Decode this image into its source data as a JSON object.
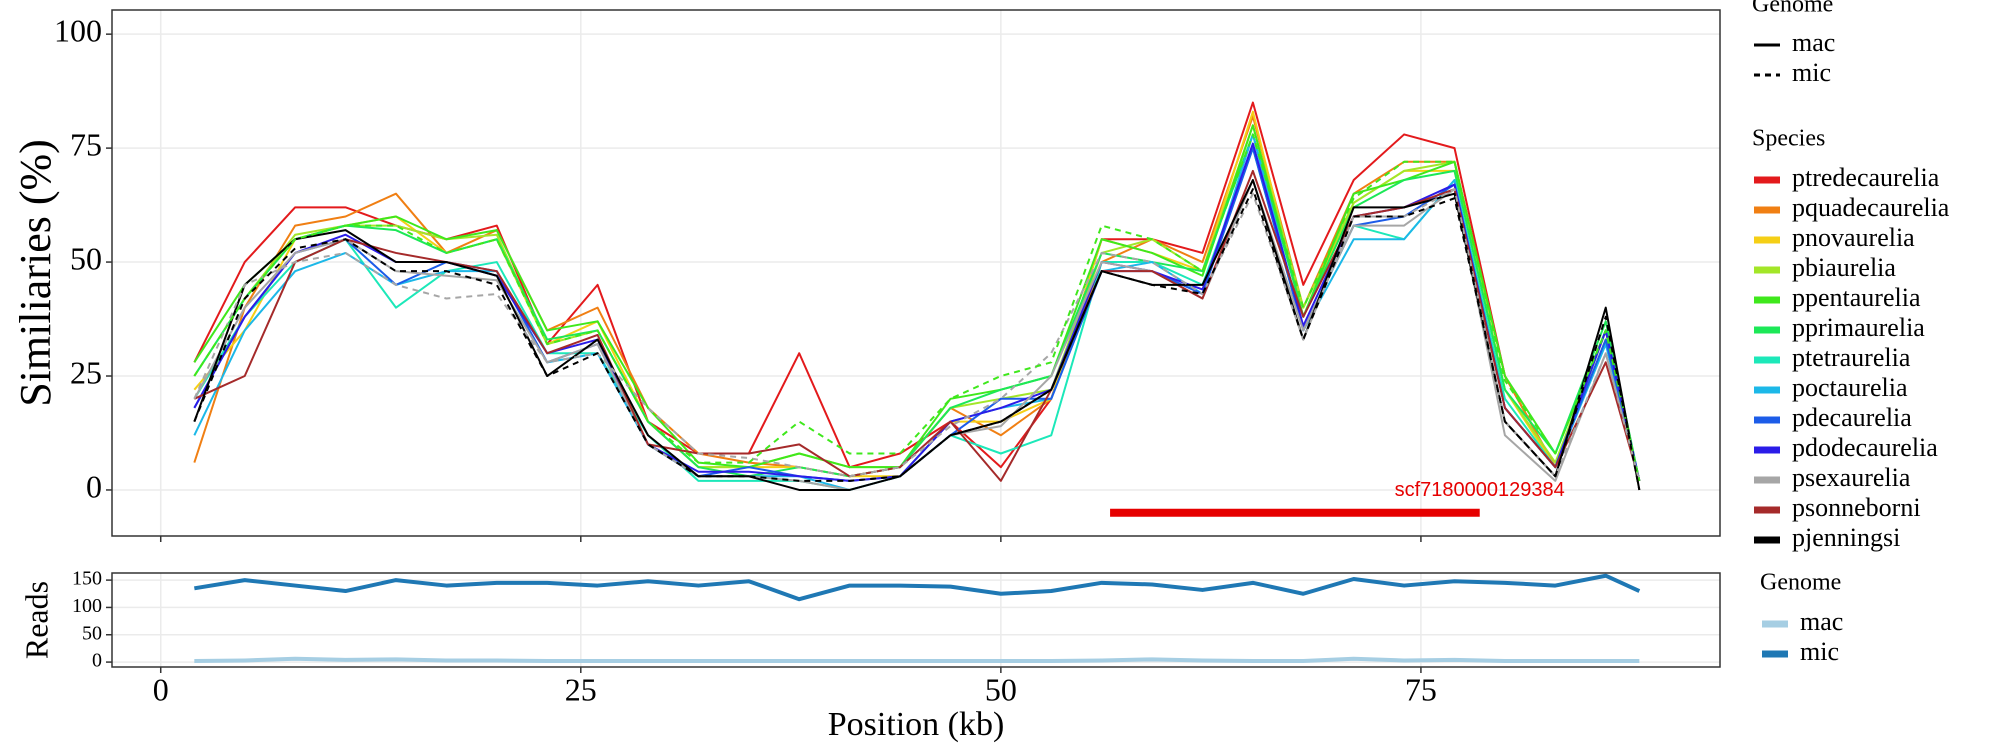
{
  "chart_data": [
    {
      "type": "line",
      "ylabel": "Similiaries (%)",
      "x": [
        2,
        5,
        8,
        11,
        14,
        17,
        20,
        23,
        26,
        29,
        32,
        35,
        38,
        41,
        44,
        47,
        50,
        53,
        56,
        59,
        62,
        65,
        68,
        71,
        74,
        77,
        80,
        83,
        86,
        88
      ],
      "xlim": [
        -2.9,
        92.8
      ],
      "xticks": [
        0,
        25,
        50,
        75
      ],
      "ylim": [
        -10.1,
        105.3
      ],
      "yticks": [
        0,
        25,
        50,
        75,
        100
      ],
      "grid": true,
      "genome_legend": {
        "title": "Genome",
        "entries": [
          "mac",
          "mic"
        ],
        "linetypes": [
          "solid",
          "dashed"
        ]
      },
      "species_legend_title": "Species",
      "series": [
        {
          "name": "ptredecaurelia",
          "genome": "mac",
          "color": "#e31a1c",
          "values": [
            28,
            50,
            62,
            62,
            58,
            55,
            58,
            32,
            45,
            15,
            8,
            8,
            30,
            5,
            8,
            15,
            5,
            20,
            55,
            55,
            52,
            85,
            45,
            68,
            78,
            75,
            25,
            5,
            35,
            2
          ]
        },
        {
          "name": "pquadecaurelia",
          "genome": "mac",
          "color": "#f07f13",
          "values": [
            6,
            40,
            58,
            60,
            65,
            52,
            57,
            35,
            40,
            18,
            8,
            6,
            5,
            3,
            5,
            18,
            12,
            20,
            50,
            55,
            50,
            82,
            40,
            65,
            72,
            72,
            25,
            5,
            35,
            2
          ]
        },
        {
          "name": "pnovaurelia",
          "genome": "mac",
          "color": "#f5cf16",
          "values": [
            22,
            35,
            55,
            58,
            60,
            52,
            55,
            32,
            37,
            15,
            5,
            5,
            5,
            3,
            3,
            15,
            15,
            20,
            55,
            52,
            48,
            83,
            38,
            63,
            70,
            70,
            22,
            5,
            33,
            2
          ]
        },
        {
          "name": "pbiaurelia",
          "genome": "mac",
          "color": "#a3e628",
          "values": [
            25,
            42,
            56,
            58,
            58,
            55,
            56,
            32,
            35,
            15,
            5,
            5,
            8,
            5,
            5,
            18,
            20,
            22,
            52,
            55,
            48,
            80,
            40,
            63,
            70,
            72,
            22,
            6,
            35,
            2
          ]
        },
        {
          "name": "ppentaurelia",
          "genome": "mac",
          "color": "#3fe81c",
          "values": [
            28,
            45,
            55,
            58,
            60,
            55,
            57,
            35,
            37,
            18,
            6,
            5,
            8,
            5,
            5,
            20,
            22,
            25,
            55,
            52,
            47,
            80,
            38,
            65,
            68,
            72,
            25,
            8,
            35,
            2
          ]
        },
        {
          "name": "pprimaurelia",
          "genome": "mac",
          "color": "#1ce857",
          "values": [
            25,
            42,
            55,
            58,
            57,
            52,
            55,
            33,
            35,
            15,
            5,
            3,
            5,
            3,
            5,
            18,
            22,
            25,
            52,
            50,
            48,
            78,
            38,
            62,
            68,
            70,
            22,
            8,
            37,
            2
          ]
        },
        {
          "name": "ptetraurelia",
          "genome": "mac",
          "color": "#1ce8b9",
          "values": [
            20,
            38,
            50,
            55,
            40,
            48,
            50,
            30,
            30,
            12,
            2,
            2,
            2,
            0,
            3,
            12,
            8,
            12,
            50,
            50,
            45,
            75,
            35,
            58,
            55,
            68,
            20,
            5,
            35,
            2
          ]
        },
        {
          "name": "poctaurelia",
          "genome": "mac",
          "color": "#1cb8e8",
          "values": [
            12,
            35,
            48,
            52,
            45,
            48,
            48,
            28,
            30,
            10,
            3,
            3,
            3,
            0,
            3,
            15,
            18,
            20,
            48,
            50,
            43,
            78,
            35,
            55,
            55,
            68,
            18,
            5,
            32,
            2
          ]
        },
        {
          "name": "pdecaurelia",
          "genome": "mac",
          "color": "#1c5ce8",
          "values": [
            18,
            38,
            52,
            55,
            45,
            50,
            48,
            28,
            32,
            10,
            3,
            5,
            3,
            2,
            3,
            12,
            20,
            20,
            48,
            48,
            43,
            75,
            35,
            58,
            60,
            67,
            18,
            5,
            33,
            2
          ]
        },
        {
          "name": "pdodecaurelia",
          "genome": "mac",
          "color": "#2b1ce8",
          "values": [
            18,
            38,
            52,
            56,
            50,
            50,
            47,
            30,
            33,
            10,
            4,
            4,
            3,
            2,
            3,
            15,
            18,
            22,
            50,
            48,
            44,
            76,
            36,
            60,
            62,
            67,
            18,
            5,
            35,
            2
          ]
        },
        {
          "name": "psexaurelia",
          "genome": "mac",
          "color": "#a6a6a6",
          "values": [
            20,
            40,
            52,
            55,
            48,
            47,
            46,
            28,
            32,
            10,
            3,
            3,
            2,
            0,
            3,
            12,
            14,
            25,
            50,
            48,
            42,
            68,
            35,
            58,
            58,
            66,
            12,
            2,
            30,
            2
          ]
        },
        {
          "name": "psonneborni",
          "genome": "mac",
          "color": "#a52a2a",
          "values": [
            20,
            25,
            50,
            55,
            52,
            50,
            48,
            30,
            34,
            10,
            8,
            8,
            10,
            3,
            5,
            15,
            2,
            22,
            48,
            48,
            42,
            70,
            38,
            60,
            62,
            66,
            18,
            5,
            28,
            2
          ]
        },
        {
          "name": "pjenningsi",
          "genome": "mac",
          "color": "#000000",
          "values": [
            15,
            45,
            55,
            57,
            50,
            50,
            47,
            25,
            33,
            12,
            3,
            3,
            0,
            0,
            3,
            12,
            15,
            22,
            48,
            45,
            45,
            68,
            33,
            62,
            62,
            65,
            15,
            3,
            40,
            0
          ]
        },
        {
          "name": "psexaurelia",
          "genome": "mic",
          "color": "#a6a6a6",
          "values": [
            20,
            45,
            50,
            52,
            45,
            42,
            43,
            28,
            30,
            18,
            8,
            7,
            5,
            3,
            5,
            14,
            20,
            30,
            52,
            50,
            43,
            65,
            33,
            60,
            60,
            66,
            15,
            3,
            30,
            2
          ]
        },
        {
          "name": "ppentaurelia",
          "genome": "mic",
          "color": "#3fe81c",
          "values": [
            25,
            42,
            55,
            58,
            58,
            52,
            55,
            32,
            35,
            15,
            6,
            6,
            15,
            8,
            8,
            20,
            25,
            28,
            58,
            55,
            48,
            78,
            40,
            64,
            72,
            72,
            24,
            8,
            35,
            2
          ]
        },
        {
          "name": "pjenningsi",
          "genome": "mic",
          "color": "#000000",
          "values": [
            15,
            42,
            53,
            55,
            48,
            48,
            45,
            25,
            30,
            10,
            3,
            3,
            2,
            2,
            3,
            12,
            15,
            22,
            48,
            45,
            43,
            66,
            33,
            60,
            60,
            64,
            15,
            3,
            38,
            0
          ]
        }
      ],
      "annotation": {
        "text": "scf7180000129384",
        "start": 56.5,
        "end": 78.5,
        "y": -5,
        "color": "#e60000"
      }
    },
    {
      "type": "line",
      "ylabel": "Reads",
      "xlabel": "Position (kb)",
      "x": [
        2,
        5,
        8,
        11,
        14,
        17,
        20,
        23,
        26,
        29,
        32,
        35,
        38,
        41,
        44,
        47,
        50,
        53,
        56,
        59,
        62,
        65,
        68,
        71,
        74,
        77,
        80,
        83,
        86,
        88
      ],
      "xlim": [
        -2.9,
        92.8
      ],
      "xticks": [
        0,
        25,
        50,
        75
      ],
      "ylim": [
        -9,
        163
      ],
      "yticks": [
        0,
        50,
        100,
        150
      ],
      "grid": true,
      "legend_title": "Genome",
      "series": [
        {
          "name": "mac",
          "color": "#a6cee3",
          "values": [
            2,
            3,
            6,
            4,
            5,
            3,
            3,
            2,
            2,
            2,
            2,
            2,
            2,
            2,
            2,
            2,
            2,
            2,
            3,
            5,
            3,
            2,
            2,
            6,
            3,
            4,
            2,
            2,
            2,
            2
          ]
        },
        {
          "name": "mic",
          "color": "#1f78b4",
          "values": [
            135,
            150,
            140,
            130,
            150,
            140,
            145,
            145,
            140,
            148,
            140,
            148,
            115,
            140,
            140,
            138,
            125,
            130,
            145,
            142,
            132,
            145,
            125,
            152,
            140,
            148,
            145,
            140,
            158,
            130
          ]
        }
      ]
    }
  ]
}
